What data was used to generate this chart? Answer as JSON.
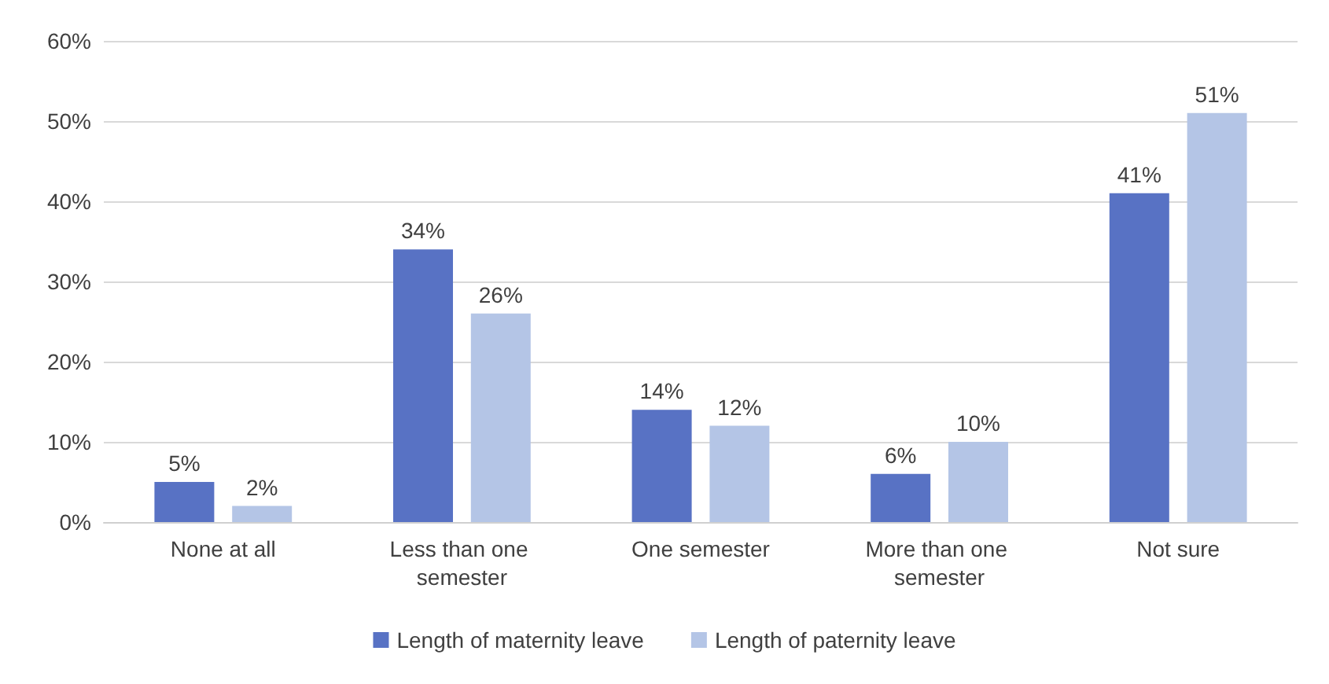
{
  "chart_data": {
    "type": "bar",
    "categories": [
      "None at all",
      "Less than one semester",
      "One semester",
      "More than one semester",
      "Not sure"
    ],
    "series": [
      {
        "name": "Length of maternity leave",
        "color": "#5872c4",
        "values": [
          5,
          34,
          14,
          6,
          41
        ],
        "value_labels": [
          "5%",
          "34%",
          "14%",
          "6%",
          "41%"
        ]
      },
      {
        "name": "Length of paternity leave",
        "color": "#b4c5e6",
        "values": [
          2,
          26,
          12,
          10,
          51
        ],
        "value_labels": [
          "2%",
          "26%",
          "12%",
          "10%",
          "51%"
        ]
      }
    ],
    "ylim": [
      0,
      60
    ],
    "yticks": [
      {
        "value": 0,
        "label": "0%"
      },
      {
        "value": 10,
        "label": "10%"
      },
      {
        "value": 20,
        "label": "20%"
      },
      {
        "value": 30,
        "label": "30%"
      },
      {
        "value": 40,
        "label": "40%"
      },
      {
        "value": 50,
        "label": "50%"
      },
      {
        "value": 60,
        "label": "60%"
      }
    ],
    "grid": "y",
    "legend": "bottom"
  }
}
